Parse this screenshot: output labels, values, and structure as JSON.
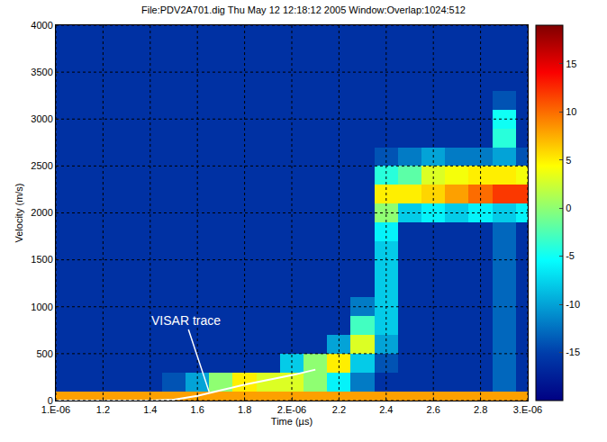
{
  "chart_data": {
    "type": "heatmap",
    "title": "File:PDV2A701.dig Thu May 12 12:18:12 2005 Window:Overlap:1024:512",
    "x_label": "Time (µs)",
    "y_label": "Velocity (m/s)",
    "x": [
      1.0,
      1.1,
      1.2,
      1.3,
      1.4,
      1.5,
      1.6,
      1.7,
      1.8,
      1.9,
      2.0,
      2.1,
      2.2,
      2.3,
      2.4,
      2.5,
      2.6,
      2.7,
      2.8,
      2.9,
      3.0
    ],
    "y": [
      0,
      200,
      400,
      600,
      800,
      1000,
      1200,
      1400,
      1600,
      1800,
      2000,
      2200,
      2400,
      2600,
      2800,
      3000,
      3200,
      3400,
      3600,
      3800,
      4000
    ],
    "z": [
      [
        8,
        8,
        8,
        8,
        8,
        8,
        8,
        8,
        8,
        8,
        8,
        8,
        8,
        8,
        8,
        8,
        8,
        8,
        8,
        8,
        8
      ],
      [
        -16,
        -16,
        -16,
        -16,
        -16,
        -14,
        -10,
        0,
        5,
        3,
        3,
        0,
        -6,
        -12,
        -16,
        -16,
        -16,
        -16,
        -16,
        -13,
        -16
      ],
      [
        -16,
        -16,
        -16,
        -16,
        -16,
        -16,
        -16,
        -16,
        -16,
        -16,
        -8,
        0,
        5,
        -8,
        -14,
        -16,
        -16,
        -16,
        -16,
        -13,
        -16
      ],
      [
        -16,
        -16,
        -16,
        -16,
        -16,
        -16,
        -16,
        -16,
        -16,
        -16,
        -16,
        -16,
        -10,
        3,
        -10,
        -16,
        -16,
        -16,
        -16,
        -13,
        -16
      ],
      [
        -16,
        -16,
        -16,
        -16,
        -16,
        -16,
        -16,
        -16,
        -16,
        -16,
        -16,
        -16,
        -16,
        -3,
        -8,
        -16,
        -16,
        -16,
        -16,
        -13,
        -16
      ],
      [
        -16,
        -16,
        -16,
        -16,
        -16,
        -16,
        -16,
        -16,
        -16,
        -16,
        -16,
        -16,
        -16,
        -12,
        -8,
        -16,
        -16,
        -16,
        -16,
        -13,
        -16
      ],
      [
        -16,
        -16,
        -16,
        -16,
        -16,
        -16,
        -16,
        -16,
        -16,
        -16,
        -16,
        -16,
        -16,
        -16,
        -8,
        -16,
        -16,
        -16,
        -16,
        -13,
        -16
      ],
      [
        -16,
        -16,
        -16,
        -16,
        -16,
        -16,
        -16,
        -16,
        -16,
        -16,
        -16,
        -16,
        -16,
        -16,
        -8,
        -16,
        -16,
        -16,
        -16,
        -13,
        -16
      ],
      [
        -16,
        -16,
        -16,
        -16,
        -16,
        -16,
        -16,
        -16,
        -16,
        -16,
        -16,
        -16,
        -16,
        -16,
        -8,
        -16,
        -16,
        -16,
        -16,
        -13,
        -16
      ],
      [
        -16,
        -16,
        -16,
        -16,
        -16,
        -16,
        -16,
        -16,
        -16,
        -16,
        -16,
        -16,
        -16,
        -16,
        -6,
        -16,
        -16,
        -16,
        -16,
        -13,
        -16
      ],
      [
        -16,
        -16,
        -16,
        -16,
        -16,
        -16,
        -16,
        -16,
        -16,
        -16,
        -16,
        -16,
        -16,
        -16,
        0,
        -8,
        -6,
        -8,
        -6,
        -8,
        -6
      ],
      [
        -16,
        -16,
        -16,
        -16,
        -16,
        -16,
        -16,
        -16,
        -16,
        -16,
        -16,
        -16,
        -16,
        -16,
        5,
        5,
        6,
        8,
        10,
        12,
        12
      ],
      [
        -16,
        -16,
        -16,
        -16,
        -16,
        -16,
        -16,
        -16,
        -16,
        -16,
        -16,
        -16,
        -16,
        -16,
        -4,
        -2,
        3,
        4,
        5,
        5,
        4
      ],
      [
        -16,
        -16,
        -16,
        -16,
        -16,
        -16,
        -16,
        -16,
        -16,
        -16,
        -16,
        -16,
        -16,
        -16,
        -14,
        -12,
        -10,
        -12,
        -12,
        -10,
        -14
      ],
      [
        -16,
        -16,
        -16,
        -16,
        -16,
        -16,
        -16,
        -16,
        -16,
        -16,
        -16,
        -16,
        -16,
        -16,
        -16,
        -16,
        -16,
        -16,
        -16,
        -4,
        -16
      ],
      [
        -16,
        -16,
        -16,
        -16,
        -16,
        -16,
        -16,
        -16,
        -16,
        -16,
        -16,
        -16,
        -16,
        -16,
        -16,
        -16,
        -16,
        -16,
        -16,
        -5,
        -16
      ],
      [
        -16,
        -16,
        -16,
        -16,
        -16,
        -16,
        -16,
        -16,
        -16,
        -16,
        -16,
        -16,
        -16,
        -16,
        -16,
        -16,
        -16,
        -16,
        -16,
        -14,
        -16
      ],
      [
        -16,
        -16,
        -16,
        -16,
        -16,
        -16,
        -16,
        -16,
        -16,
        -16,
        -16,
        -16,
        -16,
        -16,
        -16,
        -16,
        -16,
        -16,
        -16,
        -16,
        -16
      ],
      [
        -16,
        -16,
        -16,
        -16,
        -16,
        -16,
        -16,
        -16,
        -16,
        -16,
        -16,
        -16,
        -16,
        -16,
        -16,
        -16,
        -16,
        -16,
        -16,
        -16,
        -16
      ],
      [
        -16,
        -16,
        -16,
        -16,
        -16,
        -16,
        -16,
        -16,
        -16,
        -16,
        -16,
        -16,
        -16,
        -16,
        -16,
        -16,
        -16,
        -16,
        -16,
        -16,
        -16
      ],
      [
        -16,
        -16,
        -16,
        -16,
        -16,
        -16,
        -16,
        -16,
        -16,
        -16,
        -16,
        -16,
        -16,
        -16,
        -16,
        -16,
        -16,
        -16,
        -16,
        -16,
        -16
      ]
    ],
    "zlim": [
      -20,
      19
    ],
    "zticks": [
      -15,
      -10,
      -5,
      0,
      5,
      10,
      15
    ],
    "xlim": [
      1.0,
      3.0
    ],
    "xticks": [
      {
        "value": 1.0,
        "label": "1.E-06"
      },
      1.2,
      1.4,
      1.6,
      1.8,
      {
        "value": 2.0,
        "label": "2.E-06"
      },
      2.2,
      2.4,
      2.6,
      2.8,
      {
        "value": 3.0,
        "label": "3.E-06"
      }
    ],
    "ylim": [
      0,
      4000
    ],
    "yticks": [
      0,
      500,
      1000,
      1500,
      2000,
      2500,
      3000,
      3500,
      4000
    ],
    "grid": true,
    "series": [
      {
        "type": "line",
        "color": "#ffffff",
        "x": [
          1.0,
          1.2,
          1.4,
          1.5,
          1.6,
          1.7,
          1.8,
          1.9,
          2.0,
          2.1
        ],
        "values": [
          0,
          0,
          0,
          10,
          50,
          110,
          170,
          220,
          270,
          330
        ]
      }
    ],
    "annotations": [
      {
        "text": "VISAR trace",
        "x": 1.65,
        "y": 90,
        "text_x": 1.55,
        "text_y": 850,
        "color": "#ffffff"
      }
    ]
  }
}
